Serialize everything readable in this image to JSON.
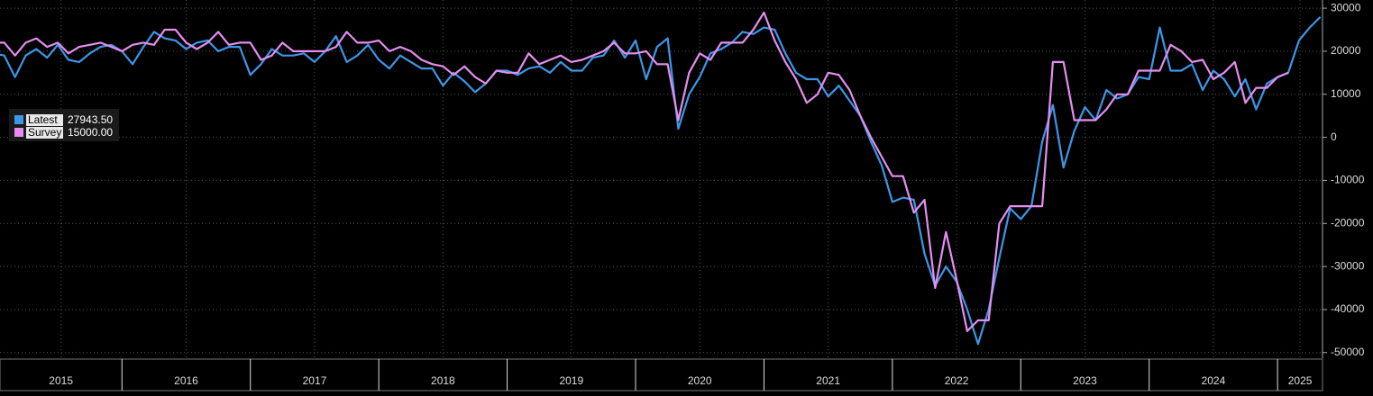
{
  "chart_data": {
    "type": "line",
    "x": [
      2015.0,
      2015.083,
      2015.167,
      2015.25,
      2015.333,
      2015.417,
      2015.5,
      2015.583,
      2015.667,
      2015.75,
      2015.833,
      2015.917,
      2016.0,
      2016.083,
      2016.167,
      2016.25,
      2016.333,
      2016.417,
      2016.5,
      2016.583,
      2016.667,
      2016.75,
      2016.833,
      2016.917,
      2017.0,
      2017.083,
      2017.167,
      2017.25,
      2017.333,
      2017.417,
      2017.5,
      2017.583,
      2017.667,
      2017.75,
      2017.833,
      2017.917,
      2018.0,
      2018.083,
      2018.167,
      2018.25,
      2018.333,
      2018.417,
      2018.5,
      2018.583,
      2018.667,
      2018.75,
      2018.833,
      2018.917,
      2019.0,
      2019.083,
      2019.167,
      2019.25,
      2019.333,
      2019.417,
      2019.5,
      2019.583,
      2019.667,
      2019.75,
      2019.833,
      2019.917,
      2020.0,
      2020.083,
      2020.167,
      2020.25,
      2020.333,
      2020.417,
      2020.5,
      2020.583,
      2020.667,
      2020.75,
      2020.833,
      2020.917,
      2021.0,
      2021.083,
      2021.167,
      2021.25,
      2021.333,
      2021.417,
      2021.5,
      2021.583,
      2021.667,
      2021.75,
      2021.833,
      2021.917,
      2022.0,
      2022.083,
      2022.167,
      2022.25,
      2022.333,
      2022.417,
      2022.5,
      2022.583,
      2022.667,
      2022.75,
      2022.833,
      2022.917,
      2023.0,
      2023.083,
      2023.167,
      2023.25,
      2023.333,
      2023.417,
      2023.5,
      2023.583,
      2023.667,
      2023.75,
      2023.833,
      2023.917,
      2024.0,
      2024.083,
      2024.167,
      2024.25,
      2024.333,
      2024.417,
      2024.5,
      2024.583,
      2024.667,
      2024.75,
      2024.833,
      2024.917,
      2025.0,
      2025.083,
      2025.167,
      2025.25,
      2025.333
    ],
    "series": [
      {
        "name": "Latest",
        "value_label": "27943.50",
        "color": "#3d97e8",
        "values": [
          19500,
          19000,
          14000,
          19000,
          20500,
          18500,
          21500,
          18000,
          17500,
          19500,
          21000,
          21500,
          20000,
          17000,
          21000,
          24500,
          23000,
          22500,
          20500,
          22000,
          22500,
          20000,
          21000,
          21000,
          14500,
          17000,
          20500,
          19000,
          19000,
          19500,
          17500,
          20000,
          23500,
          17500,
          19000,
          21500,
          18000,
          16000,
          19000,
          17500,
          16000,
          16000,
          12000,
          15000,
          13000,
          10500,
          12500,
          15500,
          15500,
          14500,
          16000,
          16500,
          15000,
          17500,
          15500,
          15500,
          18500,
          19000,
          22500,
          18500,
          22500,
          13500,
          21000,
          23000,
          2000,
          10000,
          14000,
          19500,
          20500,
          22000,
          24500,
          24000,
          25500,
          25000,
          19500,
          15000,
          13500,
          13500,
          9500,
          12000,
          8500,
          5000,
          -1000,
          -6500,
          -15000,
          -14000,
          -14500,
          -27000,
          -34500,
          -30000,
          -33500,
          -40000,
          -48000,
          -40000,
          -28000,
          -16500,
          -19000,
          -16000,
          -1000,
          7500,
          -7000,
          1500,
          7000,
          4000,
          11000,
          9000,
          10000,
          14000,
          13500,
          25500,
          15500,
          15500,
          17000,
          11000,
          15500,
          13500,
          9500,
          13500,
          6500,
          12500,
          14000,
          15000,
          22500,
          25500,
          27943.5
        ]
      },
      {
        "name": "Survey",
        "value_label": "15000.00",
        "color": "#e58ef0",
        "values": [
          22000,
          22000,
          19000,
          22000,
          23000,
          21000,
          22000,
          19500,
          21000,
          21500,
          22000,
          21000,
          20000,
          21500,
          22000,
          21500,
          25000,
          25000,
          22000,
          20500,
          22000,
          24500,
          21500,
          22000,
          22000,
          18000,
          19000,
          22000,
          20000,
          20000,
          20000,
          20000,
          21000,
          24500,
          22000,
          22000,
          22500,
          20000,
          21000,
          20000,
          18000,
          17000,
          16500,
          14500,
          16500,
          14000,
          12500,
          15500,
          15000,
          15000,
          19500,
          17000,
          18000,
          19000,
          17500,
          18000,
          19000,
          20000,
          22000,
          19500,
          19500,
          20000,
          17000,
          17000,
          4000,
          15000,
          19500,
          18000,
          22000,
          22000,
          22000,
          25000,
          29000,
          22500,
          17500,
          13500,
          8000,
          10000,
          15000,
          14500,
          11000,
          5000,
          0,
          -4500,
          -9000,
          -9000,
          -17500,
          -14500,
          -35000,
          -22000,
          -33000,
          -45000,
          -42500,
          -42500,
          -20000,
          -16000,
          -16000,
          -16000,
          -16000,
          17500,
          17500,
          4000,
          4000,
          4000,
          6500,
          10000,
          10000,
          15500,
          15500,
          15500,
          21500,
          20000,
          17500,
          18000,
          13500,
          15000,
          17500,
          8000,
          11500,
          11500,
          14000,
          15000,
          null,
          null,
          null
        ]
      }
    ],
    "xlim": [
      2015.05,
      2025.35
    ],
    "xticks": [
      2015,
      2016,
      2017,
      2018,
      2019,
      2020,
      2021,
      2022,
      2023,
      2024,
      2025
    ],
    "ylim": [
      -51300,
      31900
    ],
    "yticks": [
      30000,
      20000,
      10000,
      0,
      -10000,
      -20000,
      -30000,
      -40000,
      -50000
    ],
    "grid": true
  }
}
